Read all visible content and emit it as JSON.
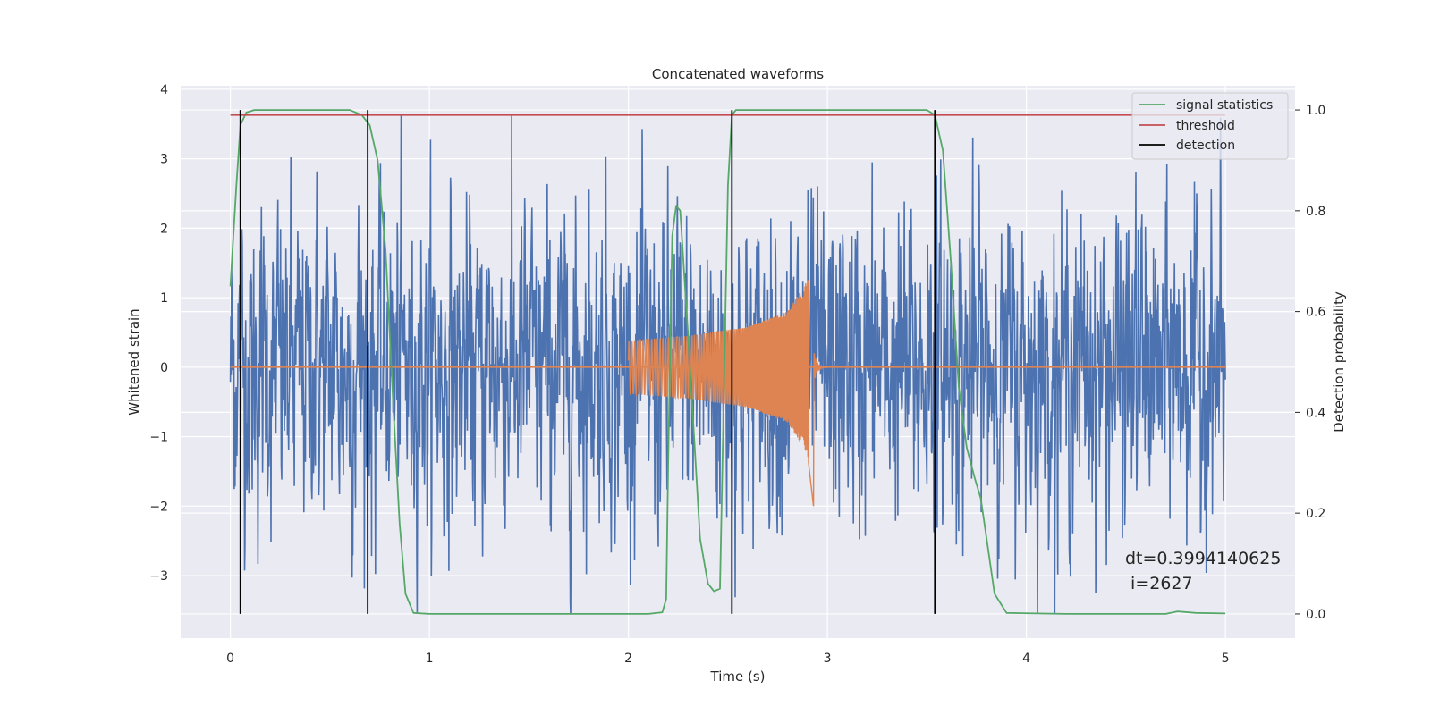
{
  "chart_data": {
    "type": "line",
    "title": "Concatenated waveforms",
    "xlabel": "Time (s)",
    "ylabel": "Whitened strain",
    "y2label": "Detection probability",
    "xlim": [
      -0.25,
      5.35
    ],
    "ylim": [
      -3.9,
      4.05
    ],
    "y2lim": [
      -0.048,
      1.048
    ],
    "xticks": [
      0,
      1,
      2,
      3,
      4,
      5
    ],
    "yticks": [
      -3,
      -2,
      -1,
      0,
      1,
      2,
      3,
      4
    ],
    "y2ticks": [
      0.0,
      0.2,
      0.4,
      0.6,
      0.8,
      1.0
    ],
    "xtick_labels": [
      "0",
      "1",
      "2",
      "3",
      "4",
      "5"
    ],
    "ytick_labels": [
      "−3",
      "−2",
      "−1",
      "0",
      "1",
      "2",
      "3",
      "4"
    ],
    "y2tick_labels": [
      "0.0",
      "0.2",
      "0.4",
      "0.6",
      "0.8",
      "1.0"
    ],
    "grid": true,
    "legend_position": "top-right",
    "colors": {
      "background": "#eaeaf2",
      "grid": "#ffffff",
      "strain": "#4c72b0",
      "template": "#dd8452",
      "signal_statistics": "#55a868",
      "threshold": "#c44e52",
      "detection": "#000000"
    },
    "series": [
      {
        "name": "signal statistics",
        "axis": "right",
        "x": [
          0.0,
          0.03,
          0.05,
          0.08,
          0.12,
          0.2,
          0.4,
          0.6,
          0.66,
          0.7,
          0.74,
          0.78,
          0.82,
          0.85,
          0.88,
          0.92,
          1.0,
          1.5,
          2.0,
          2.1,
          2.17,
          2.19,
          2.2,
          2.22,
          2.24,
          2.26,
          2.27,
          2.3,
          2.33,
          2.36,
          2.4,
          2.43,
          2.46,
          2.5,
          2.52,
          2.54,
          2.58,
          2.7,
          3.0,
          3.3,
          3.5,
          3.54,
          3.58,
          3.62,
          3.66,
          3.7,
          3.74,
          3.77,
          3.8,
          3.84,
          3.9,
          4.2,
          4.5,
          4.7,
          4.76,
          4.85,
          5.0
        ],
        "values": [
          0.65,
          0.85,
          0.97,
          0.995,
          1.0,
          1.0,
          1.0,
          1.0,
          0.99,
          0.97,
          0.9,
          0.72,
          0.4,
          0.18,
          0.04,
          0.002,
          0.0,
          0.0,
          0.0,
          0.0,
          0.003,
          0.03,
          0.3,
          0.75,
          0.81,
          0.8,
          0.74,
          0.55,
          0.35,
          0.15,
          0.06,
          0.045,
          0.05,
          0.85,
          0.99,
          1.0,
          1.0,
          1.0,
          1.0,
          1.0,
          1.0,
          0.99,
          0.92,
          0.7,
          0.45,
          0.33,
          0.27,
          0.23,
          0.15,
          0.04,
          0.002,
          0.0,
          0.0,
          0.0,
          0.005,
          0.002,
          0.001
        ]
      },
      {
        "name": "threshold",
        "axis": "right",
        "x": [
          0.0,
          5.0
        ],
        "values": [
          0.99,
          0.99
        ]
      },
      {
        "name": "detection",
        "axis": "right",
        "type": "vlines",
        "x": [
          0.05,
          0.69,
          2.52,
          3.54
        ],
        "y_range": [
          0.0,
          1.0
        ]
      },
      {
        "name": "",
        "axis": "left",
        "description_of_strain_series": "",
        "x_range": [
          0.0,
          5.0
        ],
        "typical_peak_abs": 2.5,
        "max": 3.65,
        "min": -3.55
      },
      {
        "name": "",
        "axis": "left",
        "x_range": [
          2.0,
          2.93
        ],
        "envelope_x": [
          2.0,
          2.3,
          2.6,
          2.8,
          2.9,
          2.93
        ],
        "envelope_values": [
          0.38,
          0.45,
          0.58,
          0.8,
          1.25,
          2.0
        ],
        "min": -2.0
      }
    ],
    "annotations": [
      "dt=0.3994140625",
      " i=2627"
    ],
    "legend": [
      "signal statistics",
      "threshold",
      "detection"
    ]
  }
}
